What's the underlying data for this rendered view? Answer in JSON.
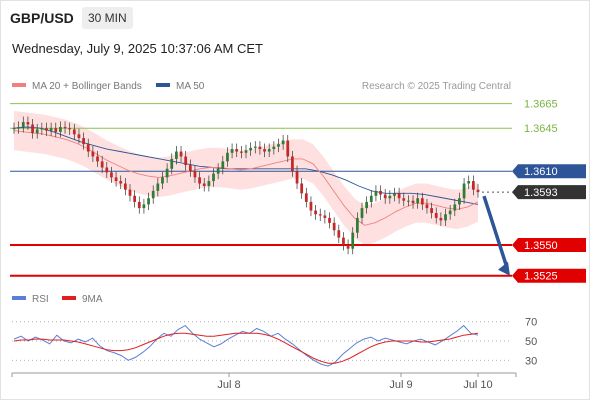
{
  "header": {
    "symbol": "GBP/USD",
    "timeframe": "30 MIN",
    "datetime": "Wednesday, July 9, 2025 10:37:06 AM CET"
  },
  "legend_main": [
    {
      "label": "MA 20 + Bollinger Bands",
      "color": "#f08080"
    },
    {
      "label": "MA 50",
      "color": "#2e5597"
    }
  ],
  "legend_rsi": [
    {
      "label": "RSI",
      "color": "#5b7fd6"
    },
    {
      "label": "9MA",
      "color": "#e02020"
    }
  ],
  "credit": "Research © 2025 Trading Central",
  "colors": {
    "up": "#2e7d32",
    "down": "#c62828",
    "resistance": "#8bc34a",
    "support": "#e00000",
    "pivot": "#2e5597",
    "arrow": "#2e5597",
    "band_fill": "#ffd6d6",
    "ma20": "#f08080",
    "ma50": "#2e5597"
  },
  "chart_data": [
    {
      "type": "candlestick",
      "title": "GBP/USD 30 MIN",
      "x_ticks": [
        "Jul 8",
        "Jul 9",
        "Jul 10"
      ],
      "ylim": [
        1.3515,
        1.3672
      ],
      "levels": [
        {
          "label": "1.3665",
          "value": 1.3665,
          "kind": "resistance"
        },
        {
          "label": "1.3645",
          "value": 1.3645,
          "kind": "resistance"
        },
        {
          "label": "1.3610",
          "value": 1.361,
          "kind": "pivot"
        },
        {
          "label": "1.3593",
          "value": 1.3593,
          "kind": "last"
        },
        {
          "label": "1.3550",
          "value": 1.355,
          "kind": "support"
        },
        {
          "label": "1.3525",
          "value": 1.3525,
          "kind": "support"
        }
      ],
      "close_series": [
        1.3645,
        1.3646,
        1.365,
        1.3648,
        1.3641,
        1.3644,
        1.3645,
        1.3643,
        1.3645,
        1.3642,
        1.3646,
        1.3645,
        1.3644,
        1.364,
        1.3637,
        1.3632,
        1.3626,
        1.3622,
        1.3618,
        1.3613,
        1.3609,
        1.3605,
        1.3602,
        1.36,
        1.3595,
        1.359,
        1.3585,
        1.358,
        1.3583,
        1.3588,
        1.3594,
        1.36,
        1.3605,
        1.3612,
        1.362,
        1.3626,
        1.3622,
        1.3615,
        1.361,
        1.3605,
        1.36,
        1.3598,
        1.3602,
        1.3608,
        1.3612,
        1.3618,
        1.3625,
        1.3628,
        1.3626,
        1.3625,
        1.3627,
        1.3629,
        1.363,
        1.3628,
        1.3626,
        1.3628,
        1.363,
        1.3632,
        1.3635,
        1.3622,
        1.361,
        1.36,
        1.3592,
        1.3585,
        1.3578,
        1.3575,
        1.3574,
        1.3572,
        1.3568,
        1.3562,
        1.3556,
        1.355,
        1.3547,
        1.356,
        1.3572,
        1.358,
        1.3585,
        1.359,
        1.3594,
        1.3591,
        1.3588,
        1.359,
        1.3592,
        1.3588,
        1.3586,
        1.3586,
        1.3584,
        1.3588,
        1.3583,
        1.358,
        1.3576,
        1.3572,
        1.357,
        1.3575,
        1.3578,
        1.3583,
        1.3588,
        1.36,
        1.3602,
        1.3595,
        1.3593
      ],
      "ma20": [
        1.3643,
        1.3642,
        1.3641,
        1.364,
        1.3638,
        1.3636,
        1.3633,
        1.3629,
        1.3624,
        1.3619,
        1.3615,
        1.3611,
        1.3608,
        1.3606,
        1.3605,
        1.3606,
        1.3608,
        1.361,
        1.3612,
        1.3613,
        1.3613,
        1.3612,
        1.3611,
        1.3612,
        1.3614,
        1.3616,
        1.3618,
        1.362,
        1.362,
        1.3616,
        1.3606,
        1.3594,
        1.3582,
        1.3572,
        1.3566,
        1.3568,
        1.3572,
        1.3577,
        1.3581,
        1.3584,
        1.3584,
        1.3582,
        1.358,
        1.3579,
        1.3581,
        1.3585
      ],
      "ma50": [
        1.3645,
        1.3646,
        1.3645,
        1.3642,
        1.3638,
        1.3634,
        1.3631,
        1.3628,
        1.3626,
        1.3624,
        1.3622,
        1.362,
        1.3618,
        1.3616,
        1.3614,
        1.3613,
        1.3612,
        1.3612,
        1.3612,
        1.3612,
        1.3612,
        1.3612,
        1.3612,
        1.361,
        1.3607,
        1.3603,
        1.3598,
        1.3594,
        1.3592,
        1.3592,
        1.3592,
        1.3591,
        1.3589,
        1.3587,
        1.3585,
        1.3583
      ],
      "forecast": {
        "from": 1.3593,
        "to": 1.3525
      }
    },
    {
      "type": "line",
      "title": "RSI",
      "y_ticks": [
        "70",
        "50",
        "30"
      ],
      "ylim": [
        22,
        78
      ],
      "series": [
        {
          "name": "RSI",
          "values": [
            52,
            55,
            50,
            54,
            51,
            47,
            56,
            50,
            48,
            52,
            49,
            53,
            45,
            40,
            38,
            35,
            30,
            33,
            38,
            44,
            52,
            58,
            55,
            62,
            66,
            58,
            52,
            48,
            44,
            47,
            52,
            56,
            60,
            58,
            63,
            60,
            55,
            58,
            52,
            47,
            41,
            35,
            30,
            26,
            24,
            28,
            36,
            42,
            48,
            52,
            54,
            50,
            53,
            51,
            49,
            47,
            50,
            52,
            49,
            46,
            50,
            55,
            60,
            66,
            58,
            56
          ]
        },
        {
          "name": "9MA",
          "values": [
            50,
            51,
            51,
            52,
            52,
            51,
            51,
            51,
            50,
            49,
            47,
            45,
            43,
            41,
            40,
            40,
            41,
            43,
            46,
            49,
            52,
            55,
            57,
            58,
            58,
            57,
            56,
            55,
            55,
            56,
            57,
            58,
            58,
            58,
            58,
            57,
            55,
            52,
            48,
            44,
            40,
            36,
            32,
            29,
            27,
            27,
            29,
            32,
            36,
            40,
            44,
            47,
            49,
            50,
            50,
            50,
            50,
            49,
            49,
            50,
            51,
            52,
            54,
            56,
            57,
            58
          ]
        }
      ]
    }
  ]
}
